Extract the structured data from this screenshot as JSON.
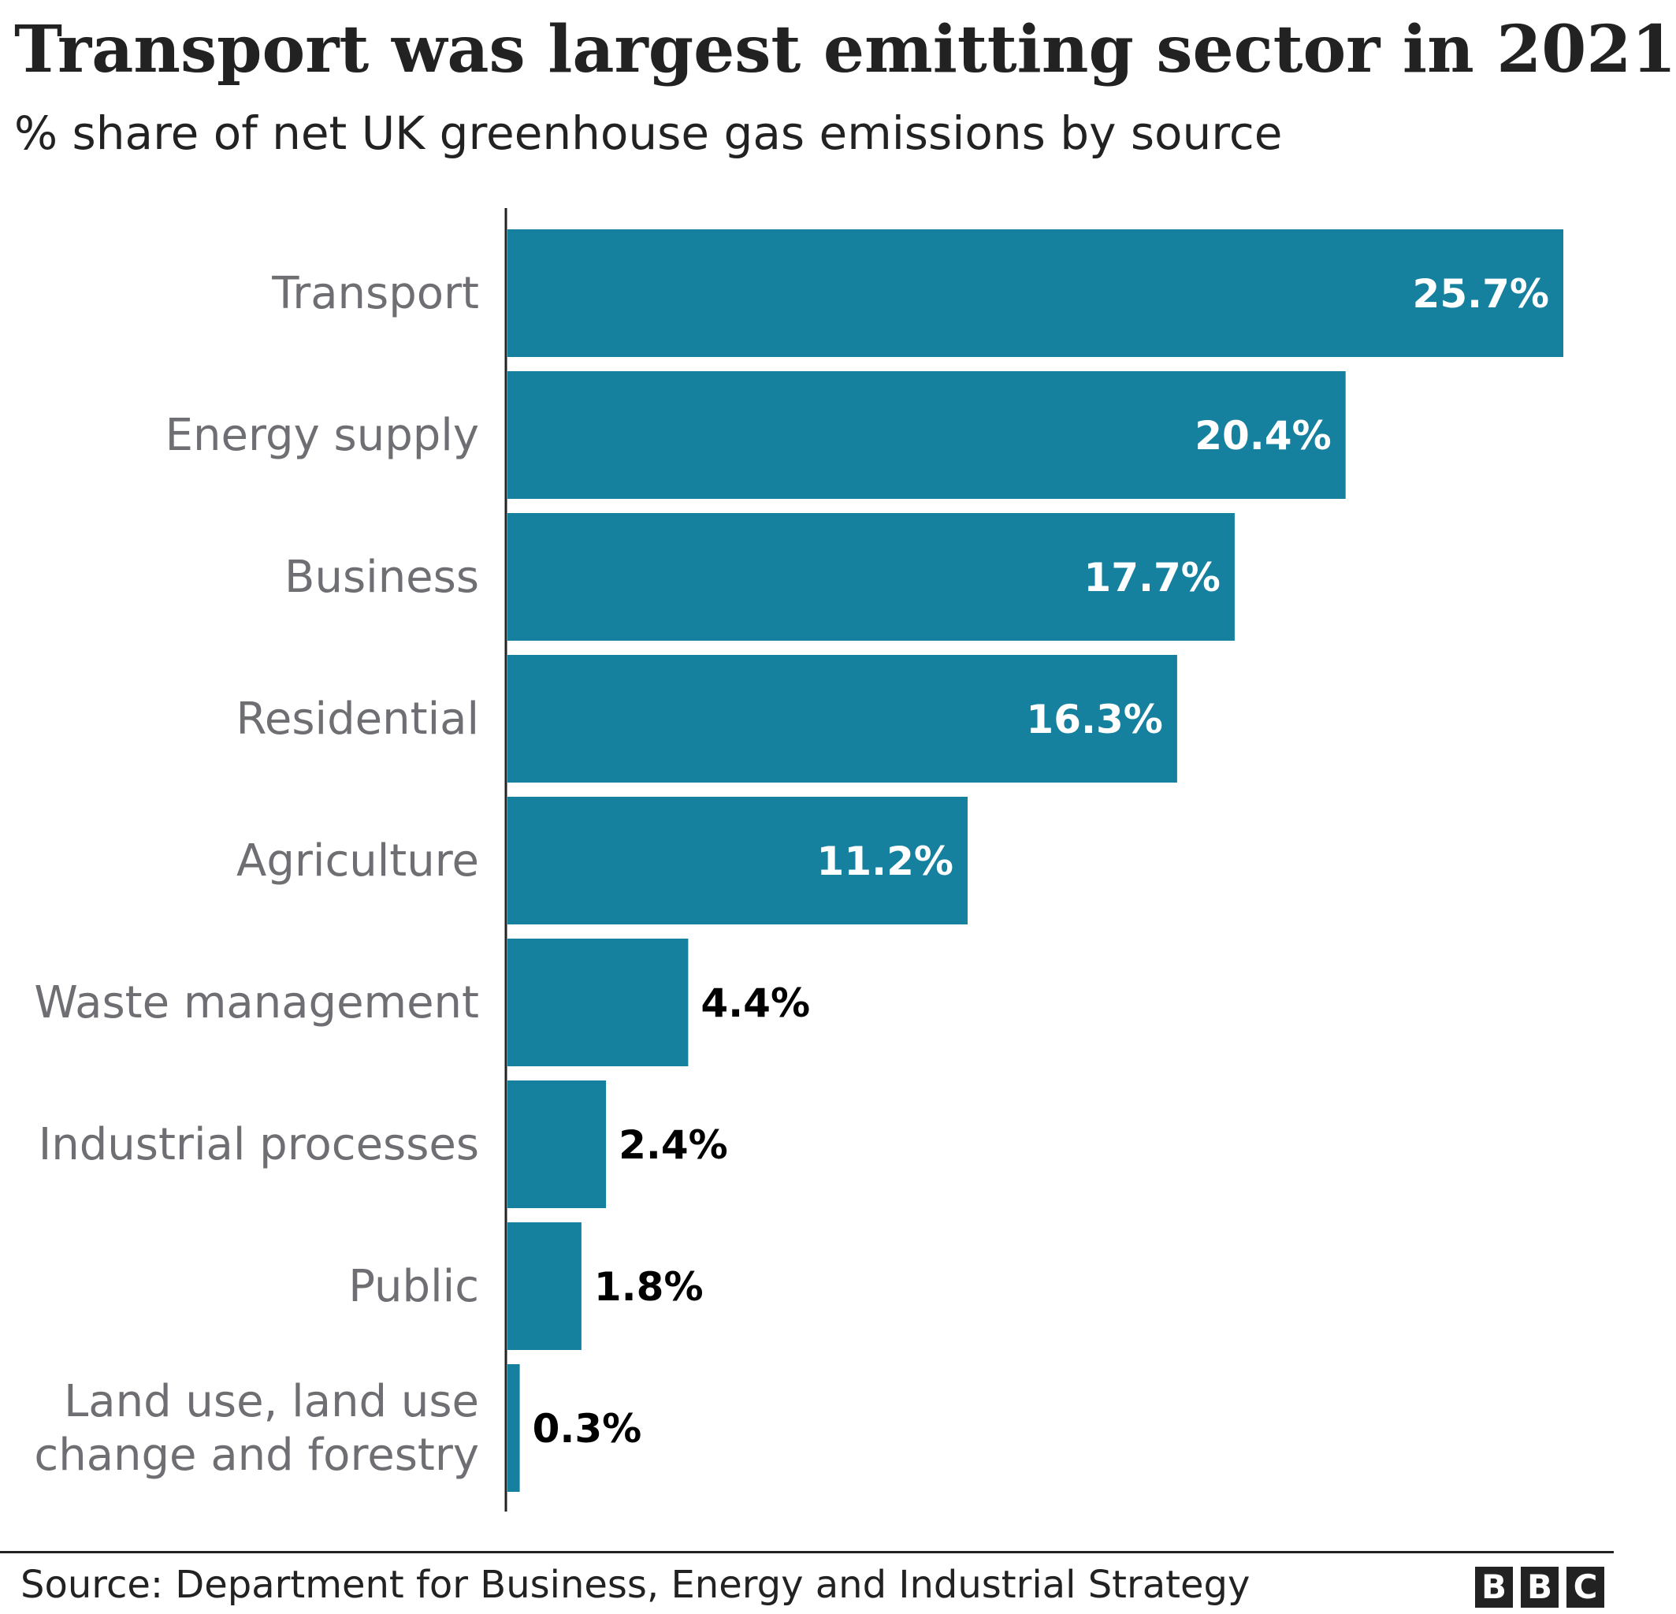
{
  "chart_data": {
    "type": "bar",
    "orientation": "horizontal",
    "title": "Transport was largest emitting sector in 2021",
    "subtitle": "% share of net UK greenhouse gas emissions by source",
    "categories": [
      "Transport",
      "Energy supply",
      "Business",
      "Residential",
      "Agriculture",
      "Waste management",
      "Industrial processes",
      "Public",
      "Land use, land use change and forestry"
    ],
    "category_lines": [
      [
        "Transport"
      ],
      [
        "Energy supply"
      ],
      [
        "Business"
      ],
      [
        "Residential"
      ],
      [
        "Agriculture"
      ],
      [
        "Waste management"
      ],
      [
        "Industrial processes"
      ],
      [
        "Public"
      ],
      [
        "Land use, land use",
        "change and forestry"
      ]
    ],
    "values": [
      25.7,
      20.4,
      17.7,
      16.3,
      11.2,
      4.4,
      2.4,
      1.8,
      0.3
    ],
    "value_labels": [
      "25.7%",
      "20.4%",
      "17.7%",
      "16.3%",
      "11.2%",
      "4.4%",
      "2.4%",
      "1.8%",
      "0.3%"
    ],
    "xlim": [
      0,
      25.7
    ],
    "grid": false,
    "bar_color": "#16809f",
    "label_inside_color": "#ffffff",
    "label_outside_color": "#000000"
  },
  "footer": {
    "source": "Source: Department for Business, Energy and Industrial Strategy",
    "logo": [
      "B",
      "B",
      "C"
    ]
  }
}
